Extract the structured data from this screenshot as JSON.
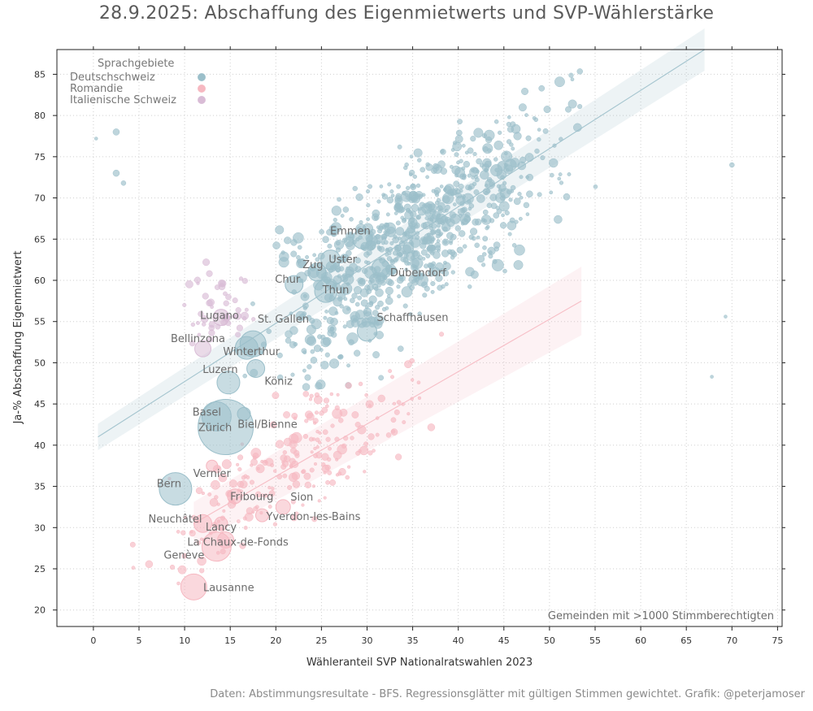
{
  "chart_data": {
    "type": "scatter",
    "title": "28.9.2025: Abschaffung des Eigenmietwerts und SVP-Wählerstärke",
    "xlabel": "Wähleranteil SVP Nationalratswahlen 2023",
    "ylabel": "Ja-% Abschaffung Eigenmietwert",
    "xlim": [
      -4,
      75.5
    ],
    "ylim": [
      18,
      88
    ],
    "xticks": [
      0,
      5,
      10,
      15,
      20,
      25,
      30,
      35,
      40,
      45,
      50,
      55,
      60,
      65,
      70,
      75
    ],
    "yticks": [
      20,
      25,
      30,
      35,
      40,
      45,
      50,
      55,
      60,
      65,
      70,
      75,
      80,
      85
    ],
    "grid": true,
    "legend": {
      "title": "Sprachgebiete",
      "position": "top-left",
      "entries": [
        {
          "name": "Deutschschweiz",
          "color": "#9bbfca"
        },
        {
          "name": "Romandie",
          "color": "#f6b8c1"
        },
        {
          "name": "Italienische Schweiz",
          "color": "#d9bcd6"
        }
      ]
    },
    "annotation": "Gemeinden mit >1000 Stimmberechtigten",
    "regression": [
      {
        "group": "Deutschschweiz",
        "x": [
          0.5,
          67
        ],
        "y": [
          41,
          88
        ],
        "band": 1.6
      },
      {
        "group": "Romandie",
        "x": [
          11,
          53.5
        ],
        "y": [
          30.5,
          57.5
        ],
        "band": 2.6
      }
    ],
    "labeled_points": [
      {
        "label": "Zürich",
        "x": 14.5,
        "y": 42.2,
        "size": 34,
        "group": "Deutschschweiz",
        "label_dx": -13,
        "label_dy": 5
      },
      {
        "label": "Basel",
        "x": 13.5,
        "y": 43.5,
        "size": 18,
        "group": "Deutschschweiz",
        "label_dx": -12,
        "label_dy": -1
      },
      {
        "label": "Bern",
        "x": 9,
        "y": 34.7,
        "size": 20,
        "group": "Deutschschweiz",
        "label_dx": -8,
        "label_dy": -2
      },
      {
        "label": "Winterthur",
        "x": 17.5,
        "y": 52.3,
        "size": 16,
        "group": "Deutschschweiz",
        "label_dx": -2,
        "label_dy": 14
      },
      {
        "label": "St. Gallen",
        "x": 16.8,
        "y": 51.8,
        "size": 14,
        "group": "Deutschschweiz",
        "label_dx": 45,
        "label_dy": -31
      },
      {
        "label": "Luzern",
        "x": 14.8,
        "y": 47.6,
        "size": 14,
        "group": "Deutschschweiz",
        "label_dx": -10,
        "label_dy": -12
      },
      {
        "label": "Lugano",
        "x": 14,
        "y": 55.5,
        "size": 10,
        "group": "Italienische Schweiz",
        "label_dx": -2,
        "label_dy": 2
      },
      {
        "label": "Bellinzona",
        "x": 12,
        "y": 51.7,
        "size": 10,
        "group": "Italienische Schweiz",
        "label_dx": -6,
        "label_dy": -8
      },
      {
        "label": "Biel/Bienne",
        "x": 16.5,
        "y": 43.8,
        "size": 8,
        "group": "Deutschschweiz",
        "label_dx": 29,
        "label_dy": 17
      },
      {
        "label": "Köniz",
        "x": 17.8,
        "y": 49.3,
        "size": 11,
        "group": "Deutschschweiz",
        "label_dx": 28,
        "label_dy": 20
      },
      {
        "label": "Chur",
        "x": 22,
        "y": 59.5,
        "size": 11,
        "group": "Deutschschweiz",
        "label_dx": -8,
        "label_dy": -2
      },
      {
        "label": "Zug",
        "x": 24.5,
        "y": 61,
        "size": 11,
        "group": "Deutschschweiz",
        "label_dx": -5,
        "label_dy": -5
      },
      {
        "label": "Emmen",
        "x": 29.5,
        "y": 65,
        "size": 12,
        "group": "Deutschschweiz",
        "label_dx": -15,
        "label_dy": -6
      },
      {
        "label": "Uster",
        "x": 26,
        "y": 62.5,
        "size": 12,
        "group": "Deutschschweiz",
        "label_dx": 15,
        "label_dy": 4
      },
      {
        "label": "Dübendorf",
        "x": 31.5,
        "y": 61.5,
        "size": 11,
        "group": "Deutschschweiz",
        "label_dx": 46,
        "label_dy": 10
      },
      {
        "label": "Thun",
        "x": 25.5,
        "y": 58.7,
        "size": 14,
        "group": "Deutschschweiz",
        "label_dx": 12,
        "label_dy": 3
      },
      {
        "label": "Schaffhausen",
        "x": 30,
        "y": 53.8,
        "size": 12,
        "group": "Deutschschweiz",
        "label_dx": 56,
        "label_dy": -13
      },
      {
        "label": "Vernier",
        "x": 13,
        "y": 37.5,
        "size": 7,
        "group": "Romandie",
        "label_dx": 0,
        "label_dy": 14
      },
      {
        "label": "Fribourg",
        "x": 15.5,
        "y": 33.8,
        "size": 9,
        "group": "Romandie",
        "label_dx": 21,
        "label_dy": 5
      },
      {
        "label": "Sion",
        "x": 20.8,
        "y": 32.5,
        "size": 9,
        "group": "Romandie",
        "label_dx": 23,
        "label_dy": -8
      },
      {
        "label": "Yverdon-les-Bains",
        "x": 18.5,
        "y": 31.5,
        "size": 8,
        "group": "Romandie",
        "label_dx": 63,
        "label_dy": 6
      },
      {
        "label": "Neuchâtel",
        "x": 12,
        "y": 30.5,
        "size": 11,
        "group": "Romandie",
        "label_dx": -34,
        "label_dy": -1
      },
      {
        "label": "Lancy",
        "x": 14,
        "y": 30.5,
        "size": 8,
        "group": "Romandie",
        "label_dx": 0,
        "label_dy": 9
      },
      {
        "label": "La Chaux-de-Fonds",
        "x": 14.5,
        "y": 28.5,
        "size": 10,
        "group": "Romandie",
        "label_dx": 15,
        "label_dy": 7
      },
      {
        "label": "Genève",
        "x": 13.5,
        "y": 27.7,
        "size": 18,
        "group": "Romandie",
        "label_dx": -40,
        "label_dy": 15
      },
      {
        "label": "Lausanne",
        "x": 11,
        "y": 22.8,
        "size": 16,
        "group": "Romandie",
        "label_dx": 43,
        "label_dy": 5
      }
    ]
  },
  "footer": {
    "caption": "Daten: Abstimmungsresultate - BFS. Regressionsglätter mit gültigen Stimmen gewichtet. Grafik: @peterjamoser"
  }
}
